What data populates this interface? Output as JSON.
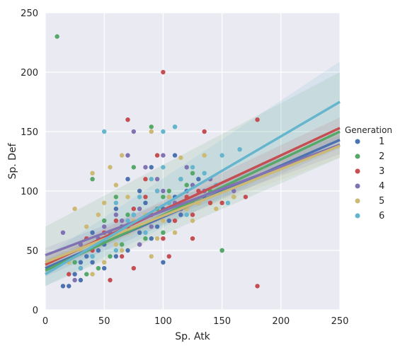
{
  "chart_data": {
    "type": "scatter",
    "title": "",
    "xlabel": "Sp. Atk",
    "ylabel": "Sp. Def",
    "xlim": [
      0,
      250
    ],
    "ylim": [
      0,
      250
    ],
    "x_ticks": [
      0,
      50,
      100,
      150,
      200,
      250
    ],
    "y_ticks": [
      0,
      50,
      100,
      150,
      200,
      250
    ],
    "grid": true,
    "background": "#eaeaf2",
    "legend": {
      "title": "Generation",
      "placement": "right"
    },
    "series": [
      {
        "name": "1",
        "color": "#4c72b0",
        "fit": {
          "x": [
            0,
            250
          ],
          "y": [
            35,
            143
          ]
        },
        "ci": {
          "upper": [
            42,
            150
          ],
          "lower": [
            28,
            136
          ]
        },
        "points": [
          [
            15,
            20
          ],
          [
            20,
            20
          ],
          [
            25,
            30
          ],
          [
            30,
            40
          ],
          [
            35,
            45
          ],
          [
            40,
            40
          ],
          [
            45,
            50
          ],
          [
            50,
            55
          ],
          [
            55,
            60
          ],
          [
            60,
            45
          ],
          [
            65,
            70
          ],
          [
            70,
            50
          ],
          [
            75,
            80
          ],
          [
            80,
            65
          ],
          [
            85,
            90
          ],
          [
            90,
            60
          ],
          [
            95,
            70
          ],
          [
            100,
            85
          ],
          [
            105,
            75
          ],
          [
            110,
            95
          ],
          [
            115,
            80
          ],
          [
            120,
            100
          ],
          [
            125,
            90
          ],
          [
            130,
            110
          ],
          [
            135,
            95
          ],
          [
            150,
            50
          ],
          [
            40,
            65
          ],
          [
            60,
            85
          ],
          [
            70,
            110
          ],
          [
            90,
            120
          ],
          [
            100,
            40
          ],
          [
            110,
            130
          ],
          [
            50,
            35
          ],
          [
            30,
            25
          ],
          [
            80,
            100
          ]
        ]
      },
      {
        "name": "2",
        "color": "#55a868",
        "fit": {
          "x": [
            0,
            250
          ],
          "y": [
            33,
            150
          ]
        },
        "ci": {
          "upper": [
            70,
            200
          ],
          "lower": [
            20,
            128
          ]
        },
        "points": [
          [
            10,
            230
          ],
          [
            90,
            154
          ],
          [
            110,
            154
          ],
          [
            40,
            110
          ],
          [
            60,
            95
          ],
          [
            70,
            80
          ],
          [
            80,
            70
          ],
          [
            85,
            60
          ],
          [
            95,
            85
          ],
          [
            100,
            95
          ],
          [
            105,
            100
          ],
          [
            115,
            110
          ],
          [
            120,
            105
          ],
          [
            125,
            115
          ],
          [
            130,
            90
          ],
          [
            65,
            55
          ],
          [
            55,
            45
          ],
          [
            45,
            35
          ],
          [
            35,
            30
          ],
          [
            75,
            120
          ],
          [
            50,
            75
          ],
          [
            100,
            65
          ],
          [
            140,
            100
          ],
          [
            160,
            95
          ],
          [
            150,
            50
          ],
          [
            25,
            40
          ]
        ]
      },
      {
        "name": "3",
        "color": "#c44e52",
        "fit": {
          "x": [
            0,
            250
          ],
          "y": [
            38,
            153
          ]
        },
        "ci": {
          "upper": [
            45,
            162
          ],
          "lower": [
            31,
            144
          ]
        },
        "points": [
          [
            100,
            200
          ],
          [
            70,
            160
          ],
          [
            135,
            150
          ],
          [
            180,
            160
          ],
          [
            180,
            20
          ],
          [
            20,
            30
          ],
          [
            30,
            35
          ],
          [
            40,
            50
          ],
          [
            50,
            65
          ],
          [
            60,
            75
          ],
          [
            70,
            70
          ],
          [
            75,
            85
          ],
          [
            80,
            55
          ],
          [
            85,
            95
          ],
          [
            90,
            80
          ],
          [
            95,
            100
          ],
          [
            100,
            60
          ],
          [
            105,
            90
          ],
          [
            110,
            75
          ],
          [
            115,
            85
          ],
          [
            120,
            95
          ],
          [
            125,
            80
          ],
          [
            130,
            100
          ],
          [
            140,
            90
          ],
          [
            150,
            90
          ],
          [
            170,
            95
          ],
          [
            65,
            45
          ],
          [
            55,
            25
          ],
          [
            45,
            55
          ],
          [
            35,
            60
          ],
          [
            85,
            110
          ],
          [
            95,
            130
          ],
          [
            105,
            45
          ],
          [
            75,
            35
          ],
          [
            125,
            60
          ]
        ]
      },
      {
        "name": "4",
        "color": "#8172b2",
        "fit": {
          "x": [
            0,
            250
          ],
          "y": [
            46,
            139
          ]
        },
        "ci": {
          "upper": [
            52,
            147
          ],
          "lower": [
            40,
            131
          ]
        },
        "points": [
          [
            75,
            150
          ],
          [
            70,
            130
          ],
          [
            85,
            120
          ],
          [
            95,
            110
          ],
          [
            100,
            100
          ],
          [
            105,
            95
          ],
          [
            110,
            90
          ],
          [
            115,
            85
          ],
          [
            120,
            120
          ],
          [
            125,
            105
          ],
          [
            135,
            100
          ],
          [
            55,
            65
          ],
          [
            60,
            80
          ],
          [
            65,
            75
          ],
          [
            80,
            85
          ],
          [
            90,
            70
          ],
          [
            30,
            55
          ],
          [
            40,
            45
          ],
          [
            45,
            60
          ],
          [
            50,
            70
          ],
          [
            25,
            25
          ],
          [
            15,
            65
          ],
          [
            140,
            110
          ],
          [
            160,
            100
          ],
          [
            100,
            130
          ],
          [
            80,
            55
          ]
        ]
      },
      {
        "name": "5",
        "color": "#ccb974",
        "fit": {
          "x": [
            0,
            250
          ],
          "y": [
            40,
            138
          ]
        },
        "ci": {
          "upper": [
            45,
            148
          ],
          "lower": [
            35,
            128
          ]
        },
        "points": [
          [
            40,
            115
          ],
          [
            55,
            120
          ],
          [
            65,
            130
          ],
          [
            90,
            150
          ],
          [
            115,
            128
          ],
          [
            135,
            130
          ],
          [
            25,
            85
          ],
          [
            35,
            70
          ],
          [
            45,
            80
          ],
          [
            50,
            90
          ],
          [
            55,
            60
          ],
          [
            60,
            55
          ],
          [
            70,
            65
          ],
          [
            75,
            75
          ],
          [
            80,
            70
          ],
          [
            85,
            80
          ],
          [
            95,
            60
          ],
          [
            100,
            75
          ],
          [
            105,
            95
          ],
          [
            110,
            65
          ],
          [
            120,
            85
          ],
          [
            125,
            75
          ],
          [
            130,
            90
          ],
          [
            30,
            50
          ],
          [
            40,
            30
          ],
          [
            20,
            40
          ],
          [
            60,
            105
          ],
          [
            70,
            95
          ],
          [
            150,
            100
          ],
          [
            160,
            95
          ],
          [
            145,
            85
          ],
          [
            90,
            45
          ],
          [
            50,
            40
          ],
          [
            65,
            50
          ]
        ]
      },
      {
        "name": "6",
        "color": "#64b5cd",
        "fit": {
          "x": [
            0,
            250
          ],
          "y": [
            30,
            175
          ]
        },
        "ci": {
          "upper": [
            45,
            209
          ],
          "lower": [
            20,
            143
          ]
        },
        "points": [
          [
            50,
            150
          ],
          [
            100,
            150
          ],
          [
            110,
            154
          ],
          [
            150,
            130
          ],
          [
            155,
            90
          ],
          [
            165,
            135
          ],
          [
            30,
            35
          ],
          [
            50,
            60
          ],
          [
            60,
            90
          ],
          [
            70,
            75
          ],
          [
            80,
            95
          ],
          [
            90,
            110
          ],
          [
            95,
            100
          ],
          [
            105,
            90
          ],
          [
            115,
            110
          ],
          [
            125,
            120
          ],
          [
            135,
            115
          ],
          [
            145,
            105
          ],
          [
            40,
            45
          ],
          [
            60,
            50
          ],
          [
            75,
            80
          ],
          [
            85,
            65
          ],
          [
            100,
            120
          ],
          [
            120,
            80
          ]
        ]
      }
    ]
  }
}
